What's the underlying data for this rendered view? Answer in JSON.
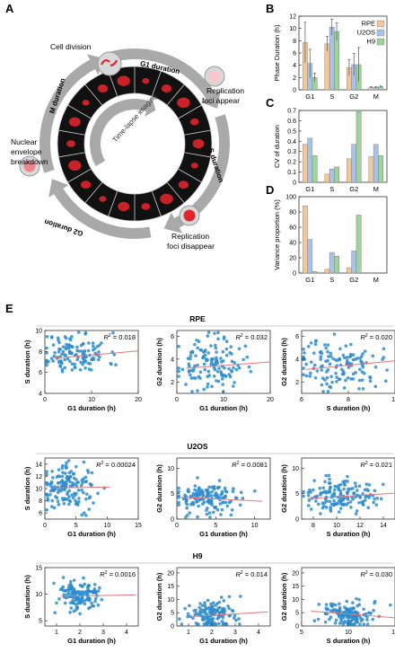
{
  "panels": {
    "A": "A",
    "B": "B",
    "C": "C",
    "D": "D",
    "E": "E"
  },
  "cycle_diagram": {
    "center_label": "Time-lapse imaging",
    "stage_labels": {
      "cell_division": "Cell division",
      "replication_foci_appear": "Replication foci appear",
      "replication_foci_disappear": "Replication foci disappear",
      "nuclear_envelope_breakdown": "Nuclear envelope breakdown"
    },
    "arc_labels": {
      "g1": "G1 duration",
      "s": "S duration",
      "g2": "G2 duration",
      "m": "M duration"
    },
    "colors": {
      "arrow": "#a9a9a9",
      "ring": "#111111",
      "nucleus": "#e0252c",
      "frame_border": "#cccccc"
    }
  },
  "colors": {
    "RPE": "#f2c79a",
    "U2OS": "#a8c3e8",
    "H9": "#9ed39a",
    "scatter_point": "#2c8ccc",
    "fit_line": "#e8747a"
  },
  "chart_data": [
    {
      "panel": "B",
      "type": "bar",
      "categories": [
        "G1",
        "S",
        "G2",
        "M"
      ],
      "ylabel": "Phase Duration (h)",
      "ylim": [
        0,
        12
      ],
      "yticks": [
        0,
        2,
        4,
        6,
        8,
        10,
        12
      ],
      "legend": "top-right",
      "series": [
        {
          "name": "RPE",
          "values": [
            7.7,
            7.5,
            3.6,
            0.4
          ],
          "err": [
            3.3,
            1.2,
            1.3,
            0.1
          ]
        },
        {
          "name": "U2OS",
          "values": [
            4.3,
            10.2,
            4.1,
            0.4
          ],
          "err": [
            2.3,
            1.3,
            1.8,
            0.1
          ]
        },
        {
          "name": "H9",
          "values": [
            2.0,
            9.5,
            4.1,
            0.5
          ],
          "err": [
            0.7,
            1.4,
            2.8,
            0.1
          ]
        }
      ]
    },
    {
      "panel": "C",
      "type": "bar",
      "categories": [
        "G1",
        "S",
        "G2",
        "M"
      ],
      "ylabel": "CV of duration",
      "ylim": [
        0,
        0.7
      ],
      "yticks": [
        0,
        0.1,
        0.2,
        0.3,
        0.4,
        0.5,
        0.6,
        0.7
      ],
      "series": [
        {
          "name": "RPE",
          "values": [
            0.37,
            0.08,
            0.23,
            0.25
          ]
        },
        {
          "name": "U2OS",
          "values": [
            0.43,
            0.13,
            0.37,
            0.37
          ]
        },
        {
          "name": "H9",
          "values": [
            0.26,
            0.15,
            0.69,
            0.26
          ]
        }
      ]
    },
    {
      "panel": "D",
      "type": "bar",
      "categories": [
        "G1",
        "S",
        "G2",
        "M"
      ],
      "ylabel": "Variance proportion (%)",
      "ylim": [
        0,
        100
      ],
      "yticks": [
        0,
        20,
        40,
        60,
        80,
        100
      ],
      "series": [
        {
          "name": "RPE",
          "values": [
            88,
            5,
            7,
            0
          ]
        },
        {
          "name": "U2OS",
          "values": [
            44,
            27,
            29,
            0
          ]
        },
        {
          "name": "H9",
          "values": [
            2,
            22,
            76,
            0
          ]
        }
      ]
    }
  ],
  "scatter_groups": [
    {
      "title": "RPE",
      "plots": [
        {
          "xlabel": "G1 duration (h)",
          "ylabel": "S duration (h)",
          "r2": "= 0.018",
          "xlim": [
            0,
            20
          ],
          "ylim": [
            4,
            10
          ],
          "xticks": [
            "0",
            "10",
            "20"
          ],
          "xtickvals": [
            0,
            10,
            20
          ],
          "yticks": [
            "4",
            "6",
            "8",
            "10"
          ],
          "ytickvals": [
            4,
            6,
            8,
            10
          ],
          "fit": [
            [
              2,
              7.35
            ],
            [
              20,
              8.05
            ]
          ],
          "center": [
            6.5,
            7.8
          ],
          "spread": [
            3.5,
            1.0
          ],
          "n": 130,
          "seed": 11
        },
        {
          "xlabel": "G1 duration (h)",
          "ylabel": "G2 duration (h)",
          "r2": "= 0.032",
          "xlim": [
            0,
            20
          ],
          "ylim": [
            1,
            6.5
          ],
          "xticks": [
            "0",
            "10",
            "20"
          ],
          "xtickvals": [
            0,
            10,
            20
          ],
          "yticks": [
            "2",
            "4",
            "6"
          ],
          "ytickvals": [
            2,
            4,
            6
          ],
          "fit": [
            [
              2,
              3.2
            ],
            [
              20,
              3.75
            ]
          ],
          "center": [
            7,
            3.5
          ],
          "spread": [
            3.5,
            1.1
          ],
          "n": 130,
          "seed": 23
        },
        {
          "xlabel": "S duration (h)",
          "ylabel": "G2 duration (h)",
          "r2": "= 0.020",
          "xlim": [
            6,
            10
          ],
          "ylim": [
            1,
            6.5
          ],
          "xticks": [
            "6",
            "8",
            "10"
          ],
          "xtickvals": [
            6,
            8,
            10
          ],
          "yticks": [
            "2",
            "4",
            "6"
          ],
          "ytickvals": [
            2,
            4,
            6
          ],
          "fit": [
            [
              6.2,
              3.1
            ],
            [
              10,
              3.85
            ]
          ],
          "center": [
            7.6,
            3.5
          ],
          "spread": [
            0.9,
            1.1
          ],
          "n": 130,
          "seed": 37
        }
      ]
    },
    {
      "title": "U2OS",
      "plots": [
        {
          "xlabel": "G1 duration (h)",
          "ylabel": "S duration (h)",
          "r2": "= 0.00024",
          "xlim": [
            0,
            15
          ],
          "ylim": [
            5,
            15
          ],
          "xticks": [
            "0",
            "5",
            "10",
            "15"
          ],
          "xtickvals": [
            0,
            5,
            10,
            15
          ],
          "yticks": [
            "6",
            "8",
            "10",
            "12",
            "14"
          ],
          "ytickvals": [
            6,
            8,
            10,
            12,
            14
          ],
          "fit": [
            [
              1,
              10.1
            ],
            [
              10.5,
              10.25
            ]
          ],
          "center": [
            3.8,
            10.2
          ],
          "spread": [
            2.2,
            1.8
          ],
          "n": 150,
          "seed": 41
        },
        {
          "xlabel": "G1 duration (h)",
          "ylabel": "G2 duration (h)",
          "r2": "= 0.0081",
          "xlim": [
            0,
            12
          ],
          "ylim": [
            0,
            12
          ],
          "xticks": [
            "0",
            "5",
            "10"
          ],
          "xtickvals": [
            0,
            5,
            10
          ],
          "yticks": [
            "0",
            "5",
            "10"
          ],
          "ytickvals": [
            0,
            5,
            10
          ],
          "fit": [
            [
              0.5,
              4.3
            ],
            [
              11,
              3.5
            ]
          ],
          "center": [
            4,
            4.1
          ],
          "spread": [
            2.2,
            1.6
          ],
          "n": 150,
          "seed": 53
        },
        {
          "xlabel": "S duration (h)",
          "ylabel": "G2 duration (h)",
          "r2": "= 0.021",
          "xlim": [
            7,
            15
          ],
          "ylim": [
            0,
            12
          ],
          "xticks": [
            "8",
            "10",
            "12",
            "14"
          ],
          "xtickvals": [
            8,
            10,
            12,
            14
          ],
          "yticks": [
            "0",
            "5",
            "10"
          ],
          "ytickvals": [
            0,
            5,
            10
          ],
          "fit": [
            [
              7.5,
              4.0
            ],
            [
              15,
              5.1
            ]
          ],
          "center": [
            10.2,
            4.3
          ],
          "spread": [
            1.5,
            1.6
          ],
          "n": 150,
          "seed": 67
        }
      ]
    },
    {
      "title": "H9",
      "plots": [
        {
          "xlabel": "G1 duration (h)",
          "ylabel": "S duration (h)",
          "r2": "= 0.0016",
          "xlim": [
            0.5,
            4.5
          ],
          "ylim": [
            4,
            15
          ],
          "xticks": [
            "1",
            "2",
            "3",
            "4"
          ],
          "xtickvals": [
            1,
            2,
            3,
            4
          ],
          "yticks": [
            "5",
            "10",
            "15"
          ],
          "ytickvals": [
            5,
            10,
            15
          ],
          "fit": [
            [
              1.2,
              9.6
            ],
            [
              4.4,
              9.85
            ]
          ],
          "center": [
            2,
            9.6
          ],
          "spread": [
            0.5,
            1.5
          ],
          "n": 140,
          "seed": 71
        },
        {
          "xlabel": "G1 duration (h)",
          "ylabel": "G2 duration (h)",
          "r2": "= 0.014",
          "xlim": [
            0.5,
            4.5
          ],
          "ylim": [
            0,
            22
          ],
          "xticks": [
            "1",
            "2",
            "3",
            "4"
          ],
          "xtickvals": [
            1,
            2,
            3,
            4
          ],
          "yticks": [
            "0",
            "5",
            "10",
            "15",
            "20"
          ],
          "ytickvals": [
            0,
            5,
            10,
            15,
            20
          ],
          "fit": [
            [
              1.2,
              3.6
            ],
            [
              4.4,
              5.3
            ]
          ],
          "center": [
            2,
            4.1
          ],
          "spread": [
            0.5,
            2.8
          ],
          "n": 140,
          "seed": 83
        },
        {
          "xlabel": "S duration (h)",
          "ylabel": "G2 duration (h)",
          "r2": "= 0.030",
          "xlim": [
            5,
            15
          ],
          "ylim": [
            0,
            22
          ],
          "xticks": [
            "5",
            "10",
            "15"
          ],
          "xtickvals": [
            5,
            10,
            15
          ],
          "yticks": [
            "0",
            "5",
            "10",
            "15",
            "20"
          ],
          "ytickvals": [
            0,
            5,
            10,
            15,
            20
          ],
          "fit": [
            [
              6,
              5.6
            ],
            [
              15,
              3.1
            ]
          ],
          "center": [
            9.6,
            4.2
          ],
          "spread": [
            1.6,
            2.8
          ],
          "n": 140,
          "seed": 97
        }
      ]
    }
  ]
}
